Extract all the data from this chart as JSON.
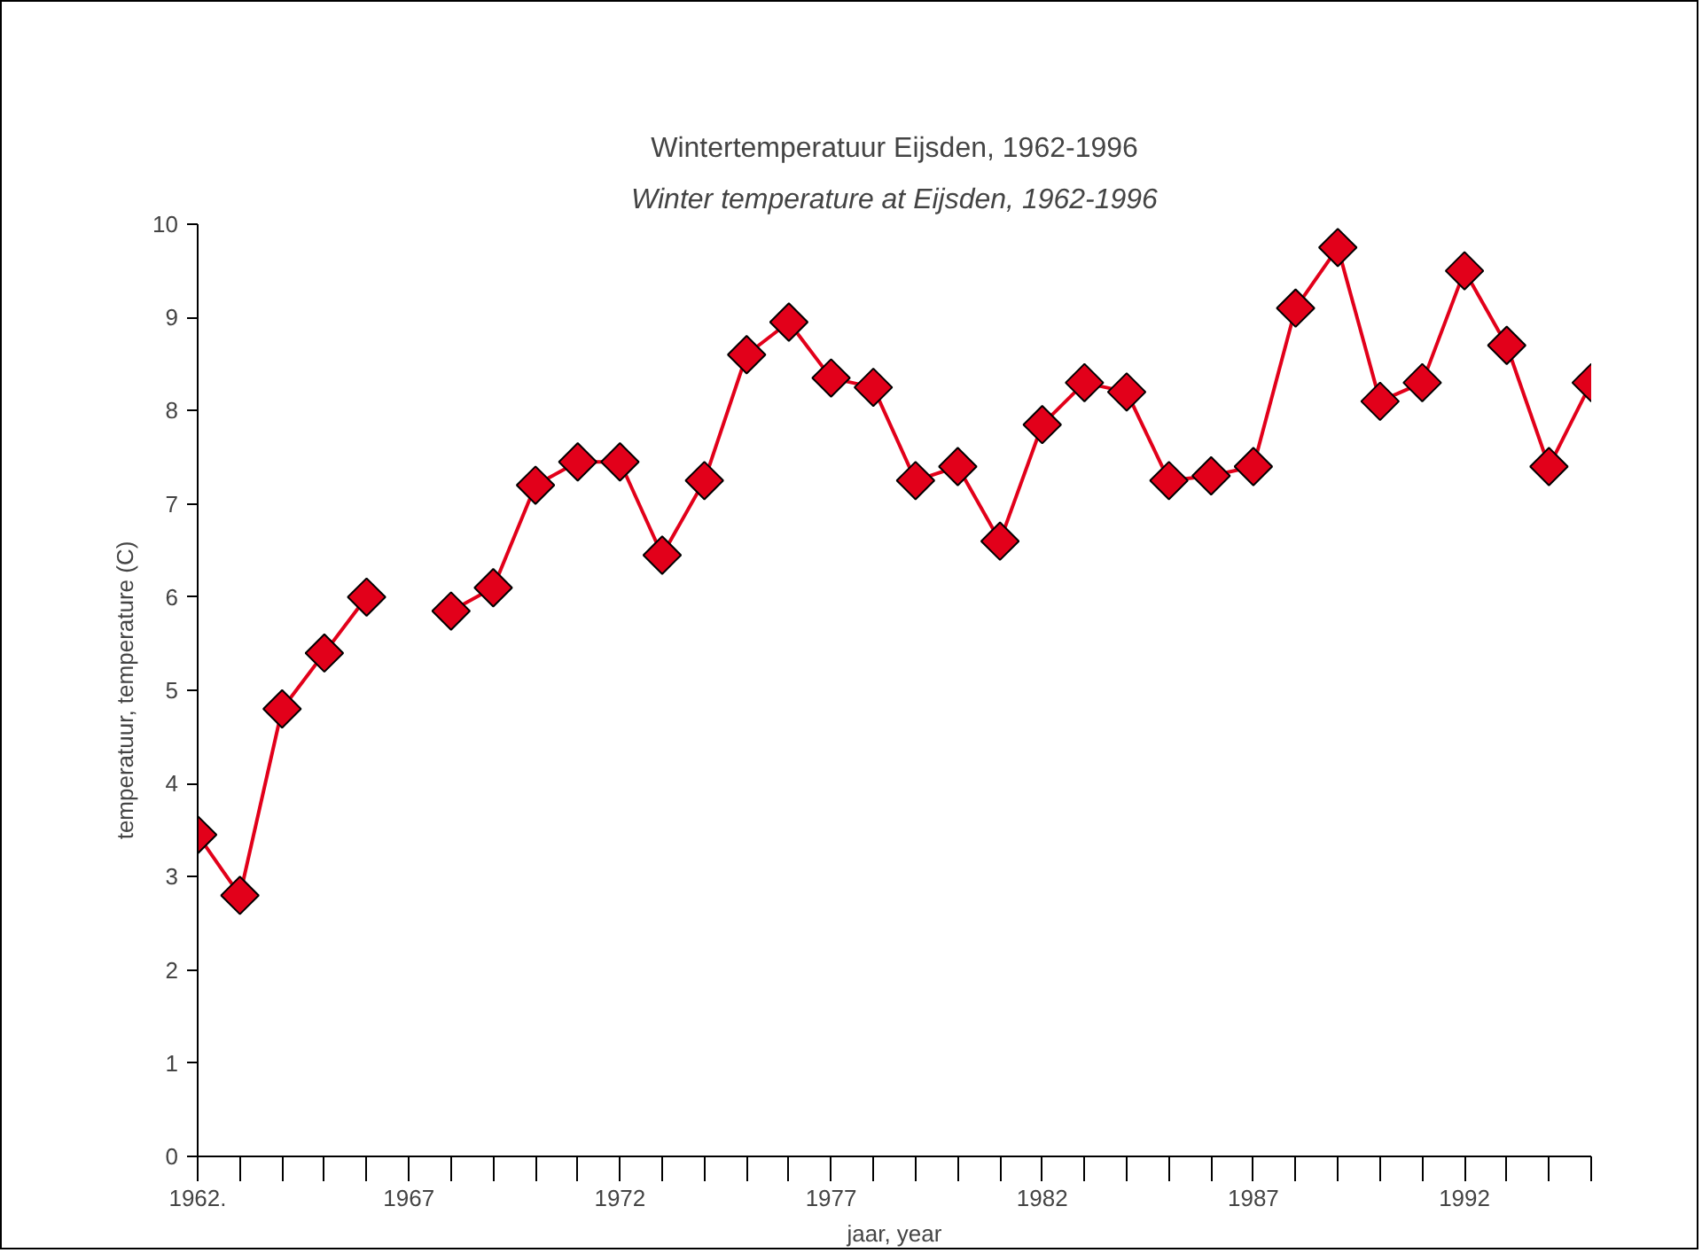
{
  "chart_data": {
    "type": "line",
    "title": "Wintertemperatuur Eijsden, 1962-1996",
    "subtitle": "Winter temperature at Eijsden, 1962-1996",
    "xlabel": "jaar, year",
    "ylabel": "temperatuur, temperature (C)",
    "x": [
      1962,
      1963,
      1964,
      1965,
      1966,
      1967,
      1968,
      1969,
      1970,
      1971,
      1972,
      1973,
      1974,
      1975,
      1976,
      1977,
      1978,
      1979,
      1980,
      1981,
      1982,
      1983,
      1984,
      1985,
      1986,
      1987,
      1988,
      1989,
      1990,
      1991,
      1992,
      1993,
      1994,
      1995
    ],
    "series": [
      {
        "color": "#e2001a",
        "values": [
          3.45,
          2.8,
          4.8,
          5.4,
          6.0,
          null,
          5.85,
          6.1,
          7.2,
          7.45,
          7.45,
          6.45,
          7.25,
          8.6,
          8.95,
          8.35,
          8.25,
          7.25,
          7.4,
          6.6,
          7.85,
          8.3,
          8.2,
          7.25,
          7.3,
          7.4,
          9.1,
          9.75,
          8.1,
          8.3,
          9.5,
          8.7,
          7.4,
          8.3
        ]
      }
    ],
    "xlim": [
      1962,
      1995
    ],
    "xticks": [
      {
        "value": 1962,
        "label": "1962."
      },
      {
        "value": 1963,
        "label": null
      },
      {
        "value": 1964,
        "label": null
      },
      {
        "value": 1965,
        "label": null
      },
      {
        "value": 1966,
        "label": null
      },
      1967,
      {
        "value": 1968,
        "label": null
      },
      {
        "value": 1969,
        "label": null
      },
      {
        "value": 1970,
        "label": null
      },
      {
        "value": 1971,
        "label": null
      },
      1972,
      {
        "value": 1973,
        "label": null
      },
      {
        "value": 1974,
        "label": null
      },
      {
        "value": 1975,
        "label": null
      },
      {
        "value": 1976,
        "label": null
      },
      1977,
      {
        "value": 1978,
        "label": null
      },
      {
        "value": 1979,
        "label": null
      },
      {
        "value": 1980,
        "label": null
      },
      {
        "value": 1981,
        "label": null
      },
      1982,
      {
        "value": 1983,
        "label": null
      },
      {
        "value": 1984,
        "label": null
      },
      {
        "value": 1985,
        "label": null
      },
      {
        "value": 1986,
        "label": null
      },
      1987,
      {
        "value": 1988,
        "label": null
      },
      {
        "value": 1989,
        "label": null
      },
      {
        "value": 1990,
        "label": null
      },
      {
        "value": 1991,
        "label": null
      },
      1992,
      {
        "value": 1993,
        "label": null
      },
      {
        "value": 1994,
        "label": null
      },
      {
        "value": 1995,
        "label": null
      }
    ],
    "ylim": [
      0,
      10
    ],
    "yticks": [
      0,
      1,
      2,
      3,
      4,
      5,
      6,
      7,
      8,
      9,
      10
    ],
    "grid": false,
    "marker": "diamond",
    "line_style": "solid"
  }
}
